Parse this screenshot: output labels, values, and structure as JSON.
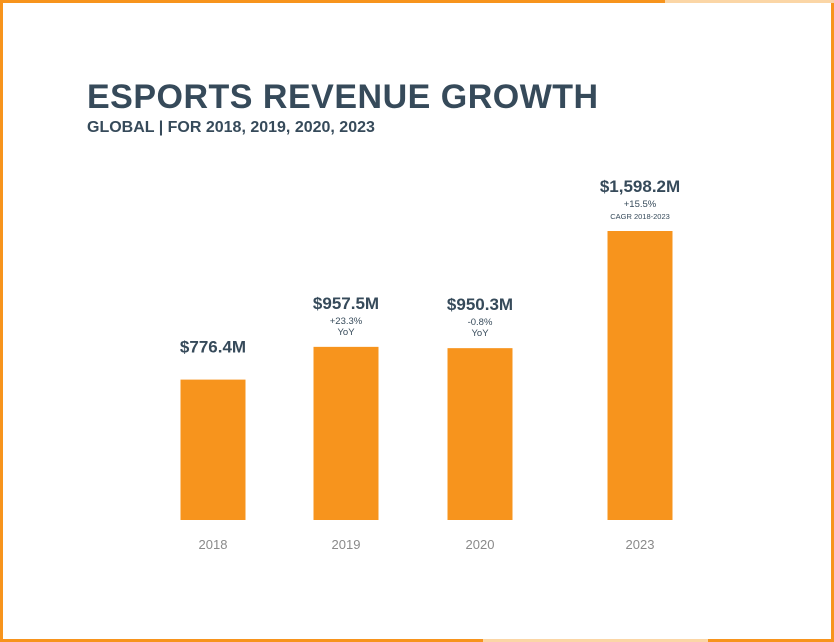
{
  "header": {
    "title": "ESPORTS REVENUE GROWTH",
    "subtitle": "GLOBAL | FOR 2018, 2019, 2020, 2023"
  },
  "colors": {
    "bar": "#f7941d",
    "text": "#364a5a",
    "tick": "#8a8a8a",
    "border": "#f7941d"
  },
  "chart_data": {
    "type": "bar",
    "title": "ESPORTS REVENUE GROWTH",
    "subtitle": "GLOBAL | FOR 2018, 2019, 2020, 2023",
    "categories": [
      "2018",
      "2019",
      "2020",
      "2023"
    ],
    "values": [
      776.4,
      957.5,
      950.3,
      1598.2
    ],
    "unit": "$M",
    "value_labels": [
      "$776.4M",
      "$957.5M",
      "$950.3M",
      "$1,598.2M"
    ],
    "annotations": [
      [],
      [
        "+23.3%",
        "YoY"
      ],
      [
        "-0.8%",
        "YoY"
      ],
      [
        "+15.5%",
        "CAGR 2018-2023"
      ]
    ],
    "xlabel": "",
    "ylabel": "",
    "ylim": [
      0,
      1598.2
    ],
    "grid": false,
    "legend": "none"
  }
}
